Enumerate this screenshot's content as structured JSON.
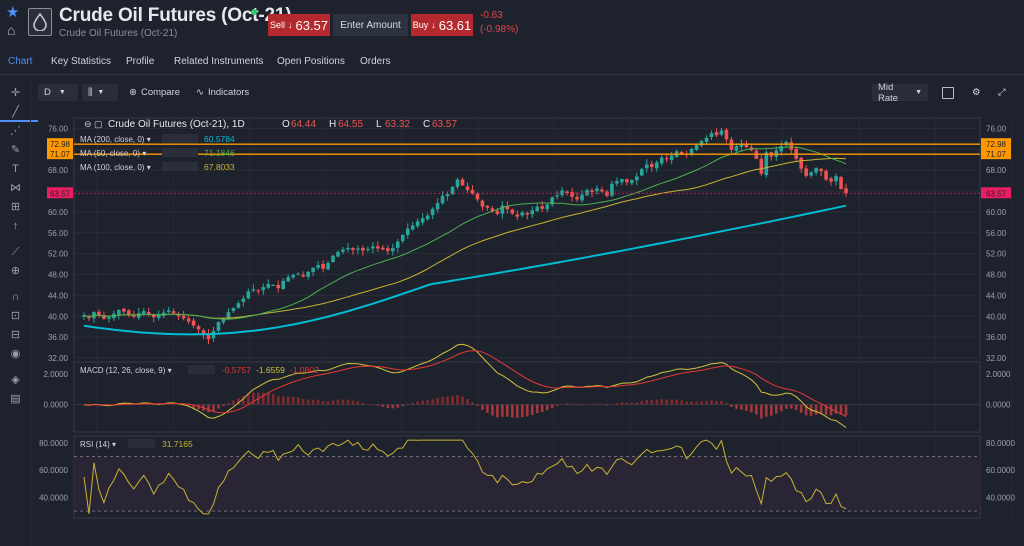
{
  "header": {
    "title": "Crude Oil Futures (Oct-21)",
    "subtitle": "Crude Oil Futures (Oct-21)",
    "sell_label": "Sell",
    "sell_price": "63.57",
    "amount_label": "Enter Amount",
    "buy_label": "Buy",
    "buy_price": "63.61",
    "change_abs": "-0.63",
    "change_pct": "(-0.98%)"
  },
  "tabs": [
    "Chart",
    "Key Statistics",
    "Profile",
    "Related Instruments",
    "Open Positions",
    "Orders"
  ],
  "toolbar": {
    "interval": "D",
    "compare_label": "Compare",
    "indicators_label": "Indicators",
    "price_mode": "Mid Rate"
  },
  "colors": {
    "up": "#26a69a",
    "down": "#ef5350",
    "ma200": "#00bcd4",
    "ma50": "#4caf50",
    "ma100": "#c8b432",
    "macd_line": "#d4c33a",
    "signal_line": "#e53935",
    "rsi": "#c8b432",
    "accent": "#4f8ff7",
    "orange_level": "#ff9800"
  },
  "chart_data": [
    {
      "type": "candlestick",
      "title": "Crude Oil Futures (Oct-21), 1D",
      "ohlc_label": {
        "O": "64.44",
        "H": "64.55",
        "L": "63.32",
        "C": "63.57"
      },
      "x_ticks": [
        "Oct",
        "Nov",
        "Dec",
        "2021",
        "Feb",
        "Mar",
        "Apr",
        "May",
        "Jun",
        "Jul",
        "Aug",
        "Sep",
        "Oct"
      ],
      "y_ticks": [
        "76.00",
        "72.00",
        "68.00",
        "64.00",
        "60.00",
        "56.00",
        "52.00",
        "48.00",
        "44.00",
        "40.00",
        "36.00",
        "32.00"
      ],
      "ylim": [
        32,
        78
      ],
      "close_series": [
        40.2,
        39.6,
        40.8,
        40.1,
        39.5,
        39.8,
        40.5,
        41.2,
        40.9,
        40.3,
        39.9,
        40.6,
        41.0,
        40.4,
        39.8,
        40.2,
        40.7,
        41.1,
        40.6,
        40.0,
        39.6,
        39.0,
        38.2,
        37.5,
        36.4,
        35.6,
        37.2,
        38.9,
        39.5,
        40.8,
        41.6,
        42.5,
        43.4,
        44.8,
        45.2,
        44.9,
        45.6,
        46.2,
        46.0,
        45.4,
        46.8,
        47.5,
        47.9,
        48.2,
        47.6,
        48.5,
        49.3,
        49.8,
        49.1,
        50.2,
        51.6,
        52.3,
        52.8,
        53.1,
        52.7,
        53.0,
        52.6,
        52.9,
        53.4,
        53.0,
        52.8,
        52.5,
        53.1,
        54.3,
        55.6,
        56.8,
        57.4,
        58.2,
        58.8,
        59.3,
        60.6,
        61.7,
        63.1,
        63.4,
        64.8,
        66.2,
        65.1,
        64.2,
        63.5,
        62.4,
        61.0,
        60.8,
        60.1,
        59.6,
        61.2,
        60.5,
        59.7,
        59.1,
        59.9,
        59.5,
        60.3,
        61.0,
        60.6,
        61.4,
        62.8,
        63.2,
        64.1,
        63.6,
        62.9,
        62.4,
        63.3,
        64.2,
        63.8,
        64.5,
        63.9,
        63.1,
        65.4,
        65.9,
        66.3,
        65.7,
        66.1,
        66.8,
        68.2,
        69.1,
        68.6,
        69.5,
        70.4,
        70.1,
        70.8,
        71.6,
        71.2,
        70.9,
        72.1,
        72.8,
        73.6,
        74.2,
        75.1,
        74.7,
        75.6,
        73.9,
        71.9,
        72.6,
        73.1,
        72.4,
        71.8,
        70.2,
        67.3,
        71.4,
        70.6,
        71.8,
        72.6,
        73.4,
        71.9,
        70.2,
        68.3,
        66.9,
        67.6,
        68.4,
        67.8,
        66.2,
        65.8,
        66.9,
        64.4,
        63.57
      ],
      "ma50_end": "71.1846",
      "ma100_end": "67.8033",
      "ma200_end": "60.5784",
      "ma_labels": [
        "MA (200, close, 0)",
        "MA (50, close, 0)",
        "MA (100, close, 0)"
      ],
      "price_tags": [
        {
          "value": "72.98"
        },
        {
          "value": "71.07"
        },
        {
          "value": "63.57"
        }
      ]
    },
    {
      "type": "line",
      "title": "MACD (12, 26, close, 9)",
      "values_label": [
        "-0.5757",
        "-1.6559",
        "-1.0802"
      ],
      "y_ticks": [
        "2.0000",
        "0.0000"
      ],
      "ylim": [
        -1.8,
        2.8
      ]
    },
    {
      "type": "line",
      "title": "RSI (14)",
      "value_label": "31.7165",
      "y_ticks": [
        "80.0000",
        "60.0000",
        "40.0000"
      ],
      "ylim": [
        25,
        85
      ],
      "bands": [
        30,
        70
      ]
    }
  ]
}
